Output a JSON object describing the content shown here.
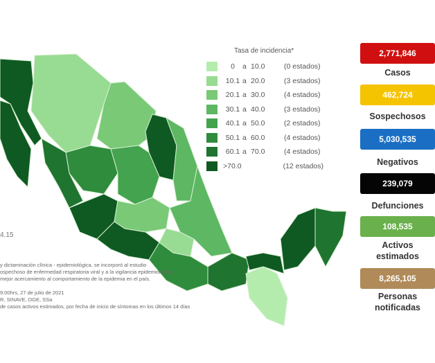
{
  "legend": {
    "title": "Tasa de incidencia*",
    "connector": "a",
    "items": [
      {
        "from": "0",
        "to": "10.0",
        "count": "(0 estados)",
        "color": "#b4ecae"
      },
      {
        "from": "10.1",
        "to": "20.0",
        "count": "(3 estados)",
        "color": "#98db92"
      },
      {
        "from": "20.1",
        "to": "30.0",
        "count": "(4 estados)",
        "color": "#79c977"
      },
      {
        "from": "30.1",
        "to": "40.0",
        "count": "(3 estados)",
        "color": "#5db763"
      },
      {
        "from": "40.1",
        "to": "50.0",
        "count": "(2 estados)",
        "color": "#44a34e"
      },
      {
        "from": "50.1",
        "to": "60.0",
        "count": "(4 estados)",
        "color": "#2f8c3c"
      },
      {
        "from": "60.1",
        "to": "70.0",
        "count": "(4 estados)",
        "color": "#1f7430"
      },
      {
        "from": ">70.0",
        "to": "",
        "count": "(12 estados)",
        "color": "#0f5a22"
      }
    ]
  },
  "stats": [
    {
      "value": "2,771,846",
      "label": "Casos",
      "color": "#d01010",
      "text_color": "#ffffff"
    },
    {
      "value": "462,724",
      "label": "Sospechosos",
      "color": "#f5c400",
      "text_color": "#ffffff"
    },
    {
      "value": "5,030,535",
      "label": "Negativos",
      "color": "#1a6fc4",
      "text_color": "#ffffff"
    },
    {
      "value": "239,079",
      "label": "Defunciones",
      "color": "#050505",
      "text_color": "#ffffff"
    },
    {
      "value": "108,535",
      "label": "Activos estimados",
      "color": "#6ab04c",
      "text_color": "#ffffff"
    },
    {
      "value": "8,265,105",
      "label": "Personas notificadas",
      "color": "#b08a58",
      "text_color": "#ffffff"
    }
  ],
  "side_text": "4.15",
  "notes": [
    "y dictaminación clínica - epidemiológica, se incorporó al estudio",
    "ospechoso de enfermedad respiratoria viral y a la vigilancia epidemiológica",
    "mejor acercamiento al comportamiento de la epidemia en el país.",
    "9:00hrs, 27 de julio de 2021",
    "R, SINAVE, DGE, SSa",
    "de casos activos estimados, por fecha de inicio de síntomas en los últimos 14 días"
  ]
}
